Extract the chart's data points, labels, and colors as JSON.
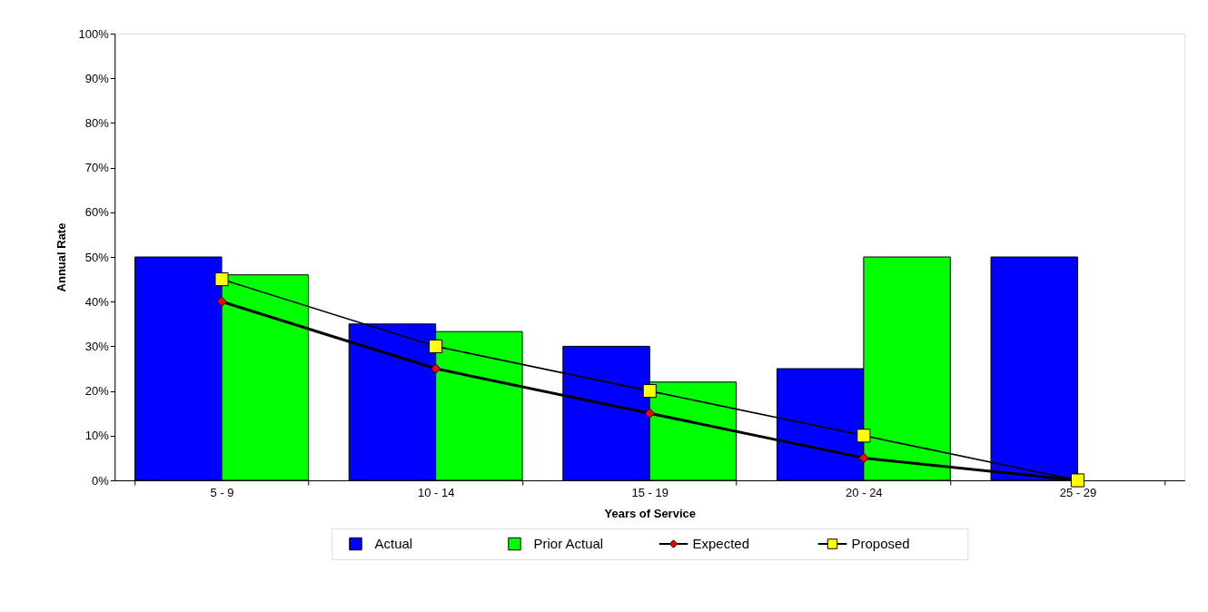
{
  "chart_data": {
    "type": "bar",
    "xlabel": "Years of Service",
    "ylabel": "Annual Rate",
    "categories": [
      "5 - 9",
      "10 - 14",
      "15 - 19",
      "20 - 24",
      "25 - 29"
    ],
    "series": [
      {
        "name": "Actual",
        "color": "#0000ff",
        "values": [
          50,
          35,
          30,
          25,
          50
        ]
      },
      {
        "name": "Prior Actual",
        "color": "#00ff00",
        "values": [
          46,
          33.3,
          22,
          50,
          null
        ]
      },
      {
        "name": "Expected",
        "type": "line",
        "color": "#ff0000",
        "marker": "diamond",
        "values": [
          40,
          25,
          15,
          5,
          0
        ]
      },
      {
        "name": "Proposed",
        "type": "line",
        "color": "#ffff00",
        "marker": "square",
        "values": [
          45,
          30,
          20,
          10,
          0
        ]
      }
    ],
    "ylim": [
      0,
      100
    ],
    "yticks": [
      {
        "value": 0,
        "label": "0%"
      },
      {
        "value": 10,
        "label": "10%"
      },
      {
        "value": 20,
        "label": "20%"
      },
      {
        "value": 30,
        "label": "30%"
      },
      {
        "value": 40,
        "label": "40%"
      },
      {
        "value": 50,
        "label": "50%"
      },
      {
        "value": 60,
        "label": "60%"
      },
      {
        "value": 70,
        "label": "70%"
      },
      {
        "value": 80,
        "label": "80%"
      },
      {
        "value": 90,
        "label": "90%"
      },
      {
        "value": 100,
        "label": "100%"
      }
    ],
    "grid": false,
    "legend": "bottom"
  }
}
